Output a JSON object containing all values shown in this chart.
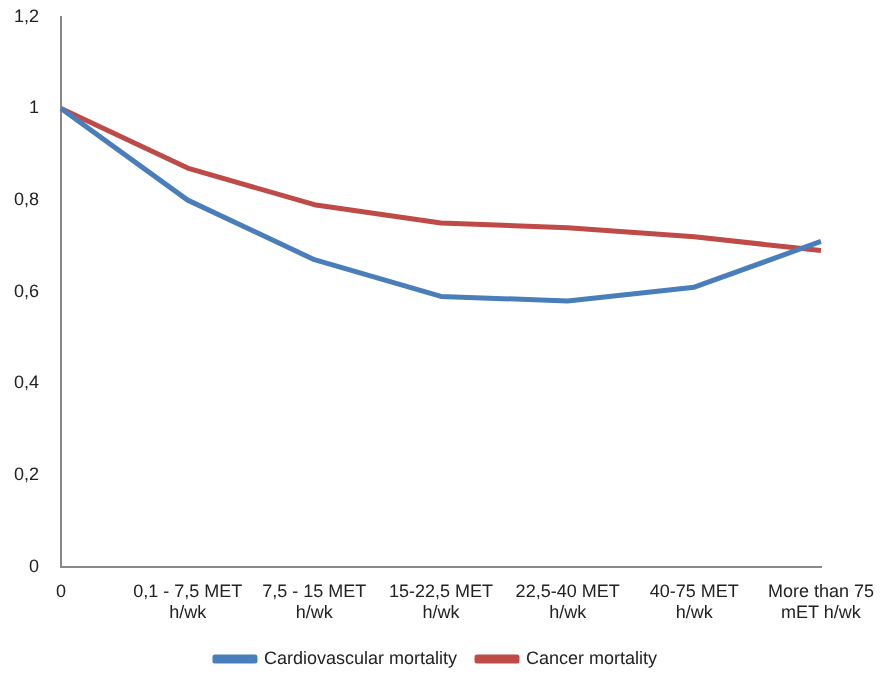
{
  "chart_data": {
    "type": "line",
    "categories": [
      "0",
      "0,1 - 7,5 MET h/wk",
      "7,5 - 15 MET h/wk",
      "15-22,5 MET h/wk",
      "22,5-40 MET h/wk",
      "40-75 MET h/wk",
      "More than 75 mET h/wk"
    ],
    "series": [
      {
        "name": "Cardiovascular mortality",
        "color": "#4a7ebb",
        "values": [
          1,
          0.8,
          0.67,
          0.59,
          0.58,
          0.61,
          0.71
        ]
      },
      {
        "name": "Cancer mortality",
        "color": "#be4b48",
        "values": [
          1,
          0.87,
          0.79,
          0.75,
          0.74,
          0.72,
          0.69
        ]
      }
    ],
    "ylim": [
      0,
      1.2
    ],
    "yticks": [
      {
        "value": 0,
        "label": "0"
      },
      {
        "value": 0.2,
        "label": "0,2"
      },
      {
        "value": 0.4,
        "label": "0,4"
      },
      {
        "value": 0.6,
        "label": "0,6"
      },
      {
        "value": 0.8,
        "label": "0,8"
      },
      {
        "value": 1,
        "label": "1"
      },
      {
        "value": 1.2,
        "label": "1,2"
      }
    ],
    "grid": false,
    "legend": "bottom",
    "marker": "none",
    "line_style": "solid"
  }
}
